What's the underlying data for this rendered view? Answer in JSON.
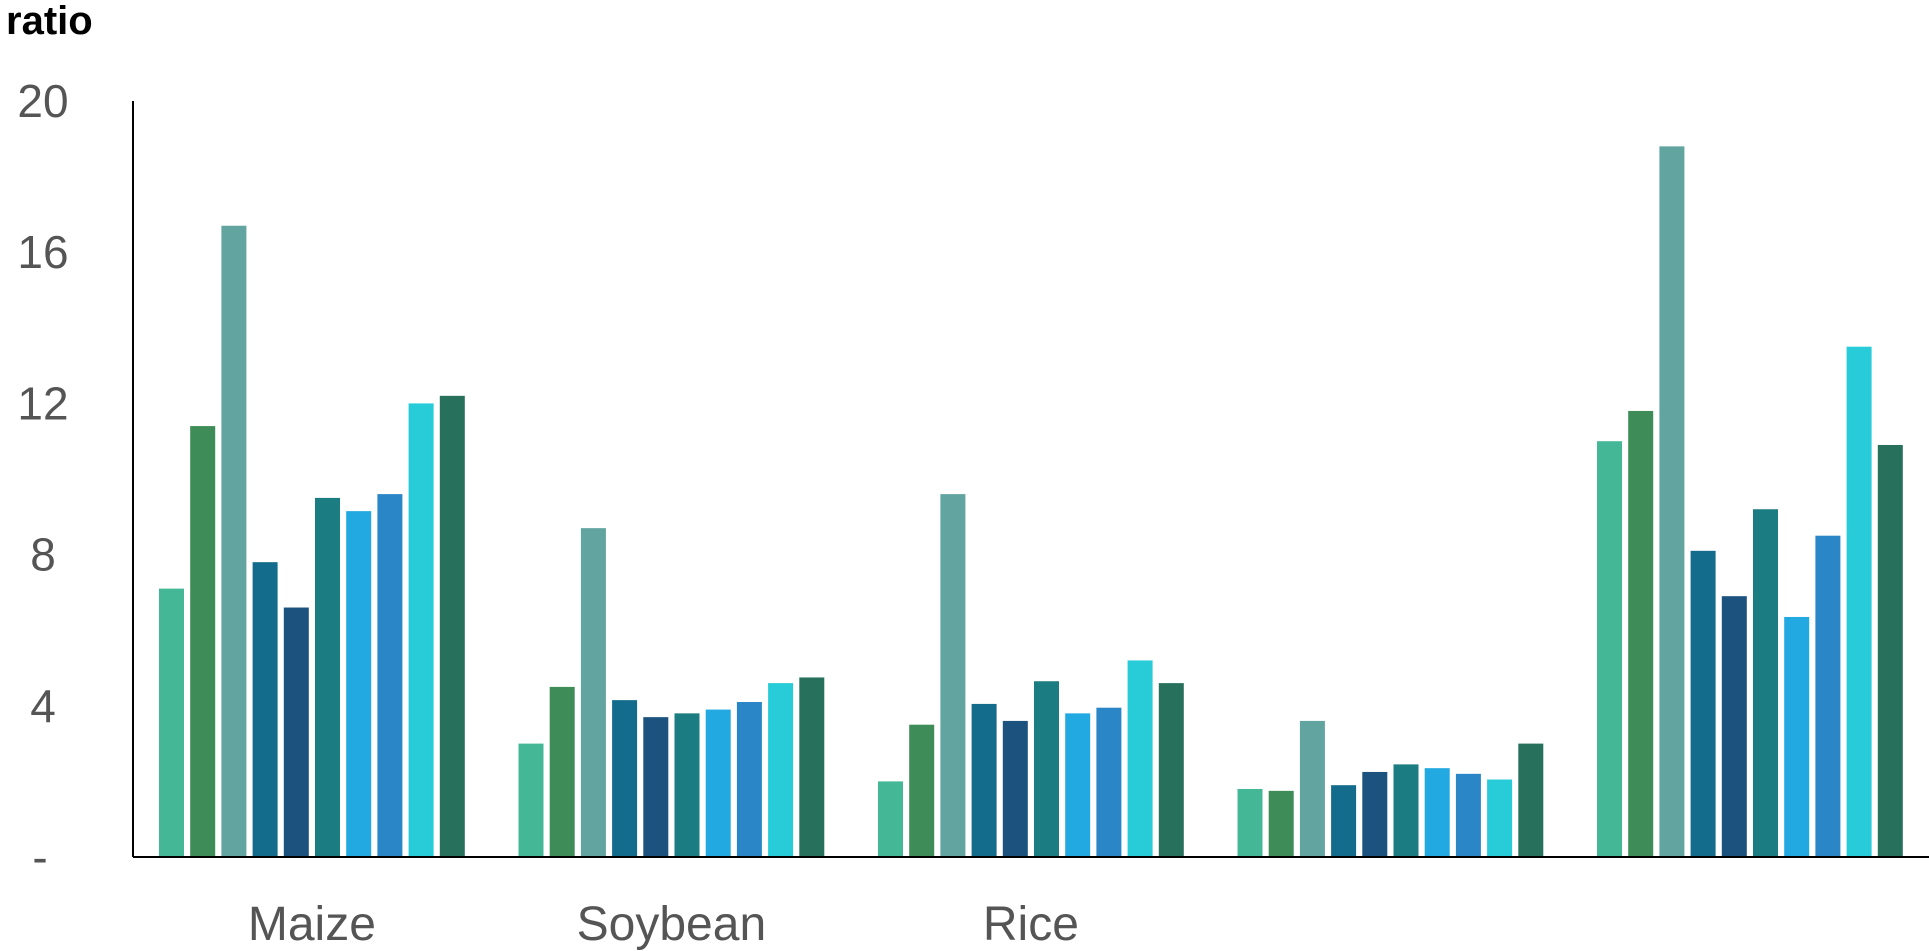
{
  "chart_data": {
    "type": "bar",
    "ylabel": "ratio",
    "ylim": [
      0,
      20
    ],
    "yticks": [
      {
        "value": 0,
        "label": "-"
      },
      {
        "value": 4,
        "label": "4"
      },
      {
        "value": 8,
        "label": "8"
      },
      {
        "value": 12,
        "label": "12"
      },
      {
        "value": 16,
        "label": "16"
      },
      {
        "value": 20,
        "label": "20"
      }
    ],
    "categories": [
      "Maize",
      "Soybean",
      "Rice",
      "",
      ""
    ],
    "series": [
      {
        "color": "#44B896",
        "values": [
          7.1,
          3.0,
          2.0,
          1.8,
          11.0
        ]
      },
      {
        "color": "#3E8C57",
        "values": [
          11.4,
          4.5,
          3.5,
          1.75,
          11.8
        ]
      },
      {
        "color": "#62A4A0",
        "values": [
          16.7,
          8.7,
          9.6,
          3.6,
          18.8
        ]
      },
      {
        "color": "#146C8C",
        "values": [
          7.8,
          4.15,
          4.05,
          1.9,
          8.1
        ]
      },
      {
        "color": "#1C527E",
        "values": [
          6.6,
          3.7,
          3.6,
          2.25,
          6.9
        ]
      },
      {
        "color": "#1B7D82",
        "values": [
          9.5,
          3.8,
          4.65,
          2.45,
          9.2
        ]
      },
      {
        "color": "#22A9E1",
        "values": [
          9.15,
          3.9,
          3.8,
          2.35,
          6.35
        ]
      },
      {
        "color": "#2A86C6",
        "values": [
          9.6,
          4.1,
          3.95,
          2.2,
          8.5
        ]
      },
      {
        "color": "#28CBD8",
        "values": [
          12.0,
          4.6,
          5.2,
          2.05,
          13.5
        ]
      },
      {
        "color": "#27705C",
        "values": [
          12.2,
          4.75,
          4.6,
          3.0,
          10.9
        ]
      }
    ]
  }
}
